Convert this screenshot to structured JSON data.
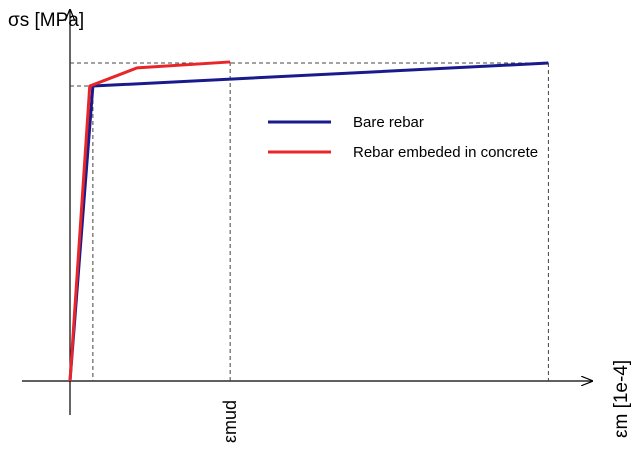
{
  "chart_data": {
    "type": "line",
    "y_label": "σs [MPa]",
    "x_label": "εm [1e-4]",
    "xlim": [
      0,
      100
    ],
    "ylim": [
      0,
      100
    ],
    "x_markers": [
      {
        "value": 30.8,
        "label": "εmud"
      }
    ],
    "legend": "upper right",
    "series": [
      {
        "name": "Bare rebar",
        "color": "#1a1a8c",
        "x": [
          0,
          4.4,
          92
        ],
        "values": [
          0,
          79.5,
          85.7
        ]
      },
      {
        "name": "Rebar embeded in concrete",
        "color": "#e8262a",
        "x": [
          0,
          3.8,
          12.9,
          30.8
        ],
        "values": [
          0,
          79.5,
          84.4,
          86
        ]
      }
    ]
  }
}
